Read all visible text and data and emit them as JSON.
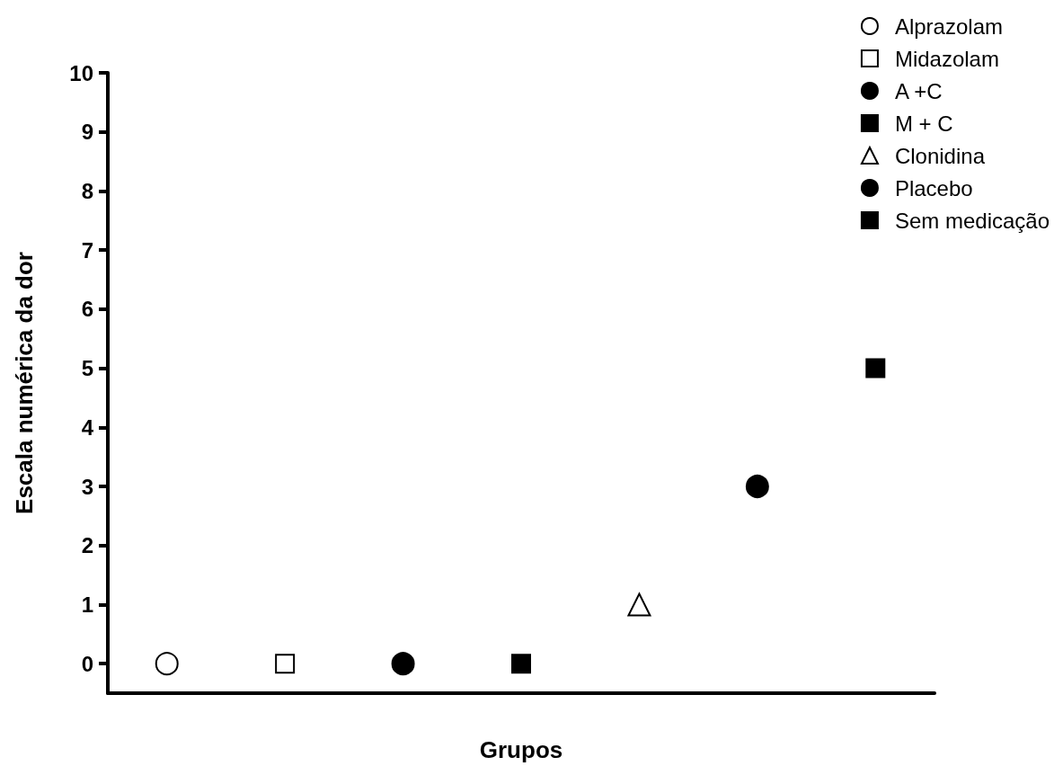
{
  "chart_data": {
    "type": "scatter",
    "xlabel": "Grupos",
    "ylabel": "Escala numérica da dor",
    "categories": [
      null,
      null,
      null,
      null,
      null,
      null,
      null
    ],
    "ylim": [
      -0.5,
      10
    ],
    "yticks": [
      0,
      1,
      2,
      3,
      4,
      5,
      6,
      7,
      8,
      9,
      10
    ],
    "grid": false,
    "legend": "top right",
    "series": [
      {
        "name": "Alprazolam",
        "marker": "circle",
        "color": "#ffffff",
        "values": [
          0,
          null,
          null,
          null,
          null,
          null,
          null
        ]
      },
      {
        "name": "Midazolam",
        "marker": "square",
        "color": "#ffffff",
        "values": [
          null,
          0,
          null,
          null,
          null,
          null,
          null
        ]
      },
      {
        "name": "A +C",
        "marker": "circle",
        "color": "#000000",
        "values": [
          null,
          null,
          0,
          null,
          null,
          null,
          null
        ]
      },
      {
        "name": "M + C",
        "marker": "square",
        "color": "#000000",
        "values": [
          null,
          null,
          null,
          0,
          null,
          null,
          null
        ]
      },
      {
        "name": "Clonidina",
        "marker": "triangle",
        "color": "#ffffff",
        "values": [
          null,
          null,
          null,
          null,
          1,
          null,
          null
        ]
      },
      {
        "name": "Placebo",
        "marker": "circle",
        "color": "#000000",
        "values": [
          null,
          null,
          null,
          null,
          null,
          3,
          null
        ]
      },
      {
        "name": "Sem medicação",
        "marker": "square",
        "color": "#000000",
        "values": [
          null,
          null,
          null,
          null,
          null,
          null,
          5
        ]
      }
    ]
  }
}
